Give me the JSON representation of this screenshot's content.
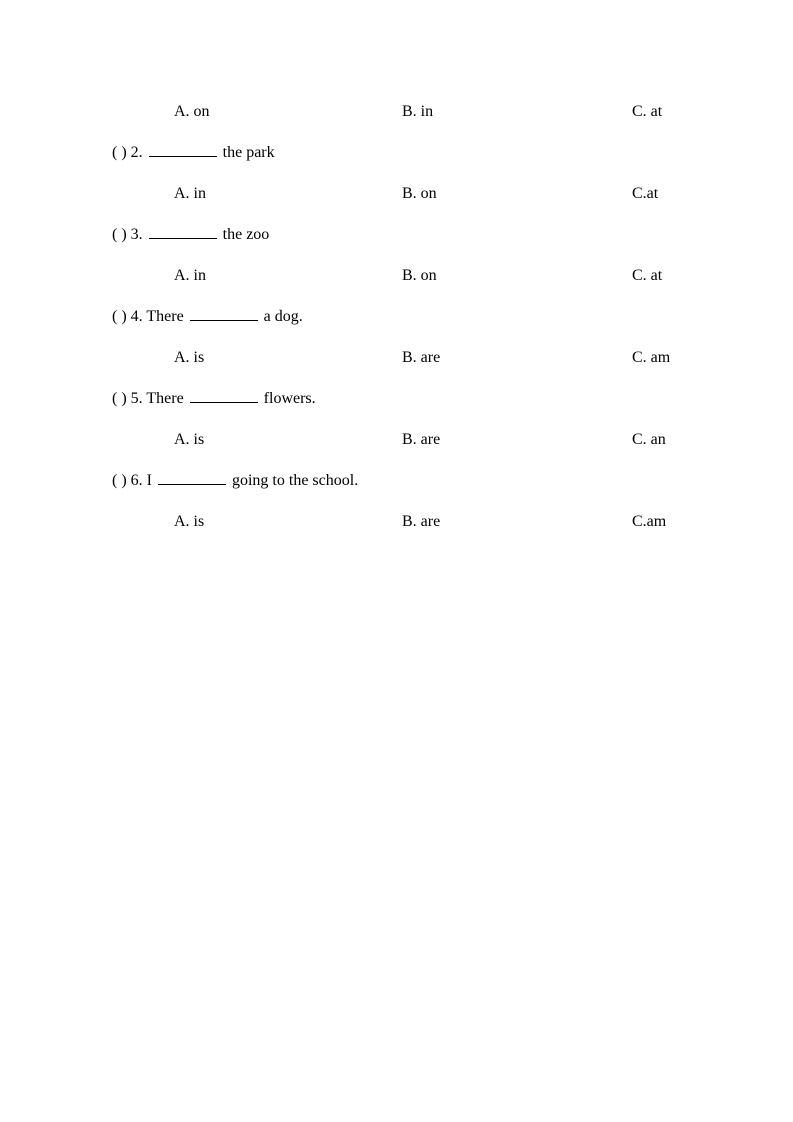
{
  "rows": [
    {
      "type": "choices",
      "a": "A. on",
      "b": "B. in",
      "c": "C. at"
    },
    {
      "type": "question",
      "prefix": "(    ) 2. ",
      "suffix": " the park"
    },
    {
      "type": "choices",
      "a": "A. in",
      "b": "B. on",
      "c": "C.at"
    },
    {
      "type": "question",
      "prefix": "(    ) 3. ",
      "suffix": " the zoo"
    },
    {
      "type": "choices",
      "a": "A. in",
      "b": "B. on",
      "c": "C. at"
    },
    {
      "type": "question",
      "prefix": "(    ) 4. There ",
      "suffix": " a dog."
    },
    {
      "type": "choices",
      "a": "A. is",
      "b": "B. are",
      "c": "C. am"
    },
    {
      "type": "question",
      "prefix": "(    ) 5. There ",
      "suffix": " flowers."
    },
    {
      "type": "choices",
      "a": "A. is",
      "b": "B. are",
      "c": "C. an"
    },
    {
      "type": "question",
      "prefix": "(    ) 6. I ",
      "suffix": " going to the school."
    },
    {
      "type": "choices",
      "a": "A. is",
      "b": "B. are",
      "c": "C.am"
    }
  ]
}
